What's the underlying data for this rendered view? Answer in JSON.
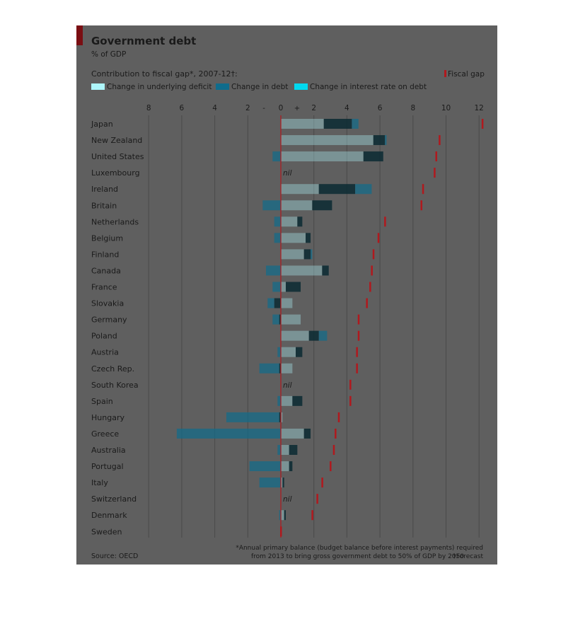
{
  "chart_data": {
    "type": "bar",
    "title": "Government debt",
    "subtitle": "% of GDP",
    "heading": "Contribution to fiscal gap*, 2007-12†:",
    "legend": [
      {
        "label": "Change in underlying deficit",
        "color": "#aef6fb"
      },
      {
        "label": "Change in debt",
        "color": "#0f6c8c"
      },
      {
        "label": "Change in interest rate on debt",
        "color": "#00d9f0"
      }
    ],
    "fiscal_gap_label": "Fiscal gap",
    "fiscal_gap_color": "#b0191e",
    "x_ticks": [
      {
        "value": -8,
        "label": "8"
      },
      {
        "value": -6,
        "label": "6"
      },
      {
        "value": -4,
        "label": "4"
      },
      {
        "value": -2,
        "label": "2"
      },
      {
        "value": 0,
        "label": "0"
      },
      {
        "value": 2,
        "label": "2"
      },
      {
        "value": 4,
        "label": "4"
      },
      {
        "value": 6,
        "label": "6"
      },
      {
        "value": 8,
        "label": "8"
      },
      {
        "value": 10,
        "label": "10"
      },
      {
        "value": 12,
        "label": "12"
      }
    ],
    "minus_sign": "-",
    "plus_sign": "+",
    "xlim": [
      -8,
      12
    ],
    "grid": true,
    "nil_label": "nil",
    "countries": [
      {
        "name": "Japan",
        "deficit": 2.6,
        "debt": 1.7,
        "interest": 0.4,
        "fiscal_gap": 12.2,
        "nil": false
      },
      {
        "name": "New Zealand",
        "deficit": 5.6,
        "debt": 0.7,
        "interest": 0.1,
        "fiscal_gap": 9.6,
        "nil": false
      },
      {
        "name": "United States",
        "deficit": 5.0,
        "debt": 1.2,
        "interest": -0.5,
        "fiscal_gap": 9.4,
        "nil": false
      },
      {
        "name": "Luxembourg",
        "deficit": 0,
        "debt": 0,
        "interest": 0,
        "fiscal_gap": 9.3,
        "nil": true
      },
      {
        "name": "Ireland",
        "deficit": 2.3,
        "debt": 2.2,
        "interest": 1.0,
        "fiscal_gap": 8.6,
        "nil": false
      },
      {
        "name": "Britain",
        "deficit": 1.9,
        "debt": 1.2,
        "interest": -1.1,
        "fiscal_gap": 8.5,
        "nil": false
      },
      {
        "name": "Netherlands",
        "deficit": 1.0,
        "debt": 0.3,
        "interest": -0.4,
        "fiscal_gap": 6.3,
        "nil": false
      },
      {
        "name": "Belgium",
        "deficit": 1.5,
        "debt": 0.3,
        "interest": -0.4,
        "fiscal_gap": 5.9,
        "nil": false
      },
      {
        "name": "Finland",
        "deficit": 1.4,
        "debt": 0.4,
        "interest": 0.1,
        "fiscal_gap": 5.6,
        "nil": false
      },
      {
        "name": "Canada",
        "deficit": 2.5,
        "debt": 0.4,
        "interest": -0.9,
        "fiscal_gap": 5.5,
        "nil": false
      },
      {
        "name": "France",
        "deficit": 0.3,
        "debt": 0.9,
        "interest": -0.5,
        "fiscal_gap": 5.4,
        "nil": false
      },
      {
        "name": "Slovakia",
        "deficit": 0.7,
        "debt": -0.4,
        "interest": -0.4,
        "fiscal_gap": 5.2,
        "nil": false
      },
      {
        "name": "Germany",
        "deficit": 1.2,
        "debt": -0.1,
        "interest": -0.4,
        "fiscal_gap": 4.7,
        "nil": false
      },
      {
        "name": "Poland",
        "deficit": 1.7,
        "debt": 0.6,
        "interest": 0.5,
        "fiscal_gap": 4.7,
        "nil": false
      },
      {
        "name": "Austria",
        "deficit": 0.9,
        "debt": 0.4,
        "interest": -0.2,
        "fiscal_gap": 4.6,
        "nil": false
      },
      {
        "name": "Czech Rep.",
        "deficit": 0.7,
        "debt": -0.1,
        "interest": -1.2,
        "fiscal_gap": 4.6,
        "nil": false
      },
      {
        "name": "South Korea",
        "deficit": 0,
        "debt": 0,
        "interest": 0,
        "fiscal_gap": 4.2,
        "nil": true
      },
      {
        "name": "Spain",
        "deficit": 0.7,
        "debt": 0.6,
        "interest": -0.2,
        "fiscal_gap": 4.2,
        "nil": false
      },
      {
        "name": "Hungary",
        "deficit": 0.1,
        "debt": -0.1,
        "interest": -3.2,
        "fiscal_gap": 3.5,
        "nil": false
      },
      {
        "name": "Greece",
        "deficit": 1.4,
        "debt": 0.4,
        "interest": -6.3,
        "fiscal_gap": 3.3,
        "nil": false
      },
      {
        "name": "Australia",
        "deficit": 0.5,
        "debt": 0.5,
        "interest": -0.2,
        "fiscal_gap": 3.2,
        "nil": false
      },
      {
        "name": "Portugal",
        "deficit": 0.5,
        "debt": 0.2,
        "interest": -1.9,
        "fiscal_gap": 3.0,
        "nil": false
      },
      {
        "name": "Italy",
        "deficit": 0.1,
        "debt": 0.1,
        "interest": -1.3,
        "fiscal_gap": 2.5,
        "nil": false
      },
      {
        "name": "Switzerland",
        "deficit": 0,
        "debt": 0,
        "interest": 0,
        "fiscal_gap": 2.2,
        "nil": true
      },
      {
        "name": "Denmark",
        "deficit": 0.2,
        "debt": 0.1,
        "interest": -0.1,
        "fiscal_gap": 1.9,
        "nil": false
      },
      {
        "name": "Sweden",
        "deficit": 0,
        "debt": 0,
        "interest": 0,
        "fiscal_gap": 0.0,
        "nil": false
      }
    ],
    "source": "Source: OECD",
    "footnote_line1": "*Annual primary balance (budget balance before interest payments) required",
    "footnote_line2": "from 2013 to bring gross government debt to 50% of GDP by 2050",
    "footnote_forecast": "†Forecast",
    "colors": {
      "plot_background": "#5f5f5f",
      "gridline": "#4a4a4a",
      "deficit": "#aef6fb",
      "debt": "#0f6c8c",
      "debt_dark": "#0b2a33",
      "interest": "#00d9f0",
      "accent_bar": "#7a0e12",
      "text": "#1a1a1a"
    }
  }
}
